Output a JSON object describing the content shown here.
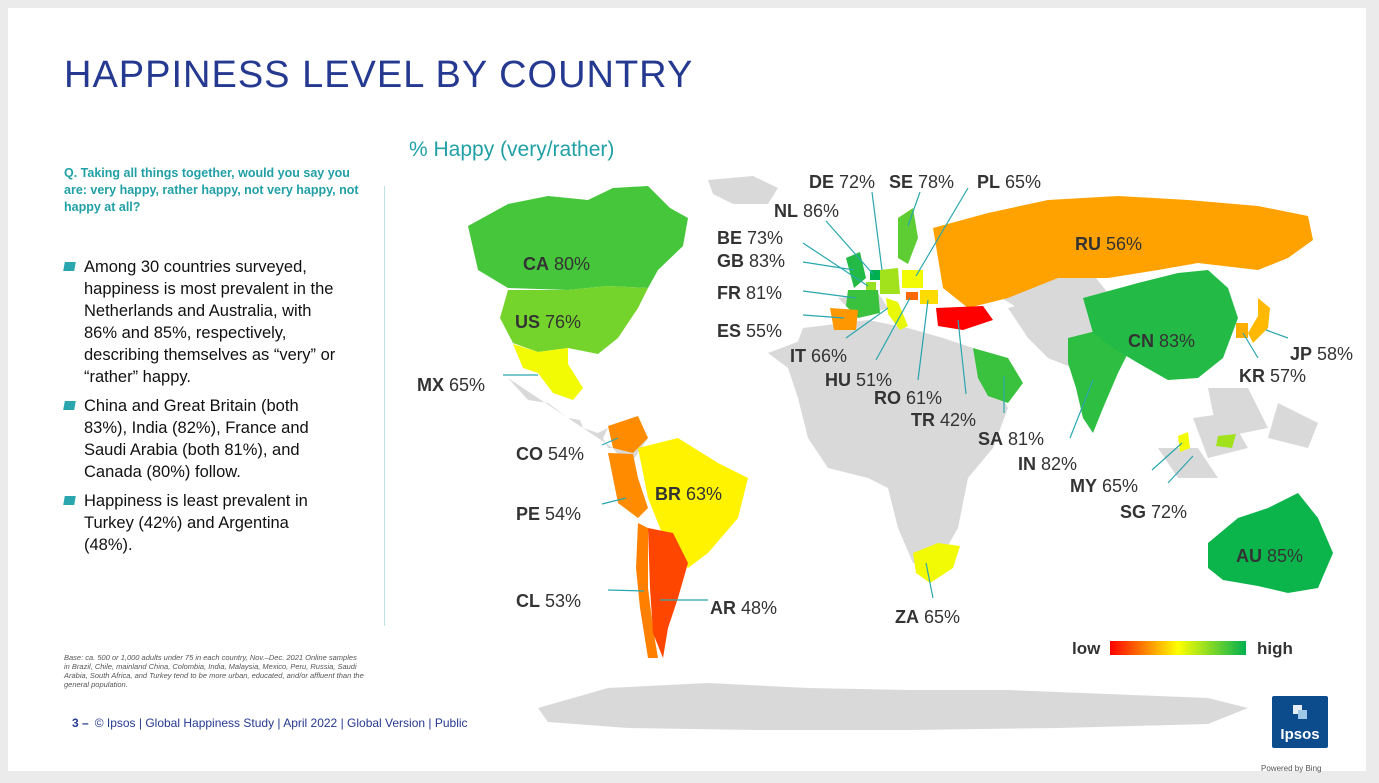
{
  "slide": {
    "title": "HAPPINESS LEVEL BY COUNTRY",
    "question": "Q. Taking all things together, would you say you are: very happy, rather happy, not very happy, not happy at all?",
    "bullets": [
      "Among 30 countries surveyed, happiness is most prevalent in the Netherlands and Australia, with 86% and 85%, respectively, describing themselves as “very” or “rather” happy.",
      "China and Great Britain (both 83%), India (82%), France and Saudi Arabia (both 81%), and Canada (80%) follow.",
      "Happiness is least prevalent in Turkey (42%) and Argentina (48%)."
    ],
    "base_note": "Base: ca. 500 or 1,000 adults under 75 in each country, Nov.–Dec. 2021 Online samples in Brazil, Chile, mainland China, Colombia, India, Malaysia, Mexico, Peru, Russia, Saudi Arabia, South Africa, and Turkey tend to be more urban, educated, and/or affluent than the general population.",
    "footer": {
      "page_number": "3 –",
      "text": "© Ipsos | Global Happiness Study | April 2022 | Global Version | Public"
    },
    "powered_by": "Powered by Bing",
    "logo_text": "Ipsos"
  },
  "colors": {
    "title": "#253990",
    "accent_teal": "#21a0a6",
    "land_neutral": "#d9d9d9",
    "scale_low": "#ff0000",
    "scale_mid": "#ffff00",
    "scale_high": "#00b050"
  },
  "chart_data": {
    "type": "choropleth-map",
    "title": "% Happy (very/rather)",
    "legend": {
      "low_label": "low",
      "high_label": "high",
      "placement": "bottom-right"
    },
    "countries": [
      {
        "code": "NL",
        "value": 86
      },
      {
        "code": "AU",
        "value": 85
      },
      {
        "code": "CN",
        "value": 83
      },
      {
        "code": "GB",
        "value": 83
      },
      {
        "code": "IN",
        "value": 82
      },
      {
        "code": "FR",
        "value": 81
      },
      {
        "code": "SA",
        "value": 81
      },
      {
        "code": "CA",
        "value": 80
      },
      {
        "code": "SE",
        "value": 78
      },
      {
        "code": "US",
        "value": 76
      },
      {
        "code": "BE",
        "value": 73
      },
      {
        "code": "DE",
        "value": 72
      },
      {
        "code": "SG",
        "value": 72
      },
      {
        "code": "IT",
        "value": 66
      },
      {
        "code": "PL",
        "value": 65
      },
      {
        "code": "MX",
        "value": 65
      },
      {
        "code": "MY",
        "value": 65
      },
      {
        "code": "ZA",
        "value": 65
      },
      {
        "code": "BR",
        "value": 63
      },
      {
        "code": "RO",
        "value": 61
      },
      {
        "code": "JP",
        "value": 58
      },
      {
        "code": "KR",
        "value": 57
      },
      {
        "code": "RU",
        "value": 56
      },
      {
        "code": "ES",
        "value": 55
      },
      {
        "code": "CO",
        "value": 54
      },
      {
        "code": "PE",
        "value": 54
      },
      {
        "code": "CL",
        "value": 53
      },
      {
        "code": "HU",
        "value": 51
      },
      {
        "code": "AR",
        "value": 48
      },
      {
        "code": "TR",
        "value": 42
      }
    ]
  }
}
